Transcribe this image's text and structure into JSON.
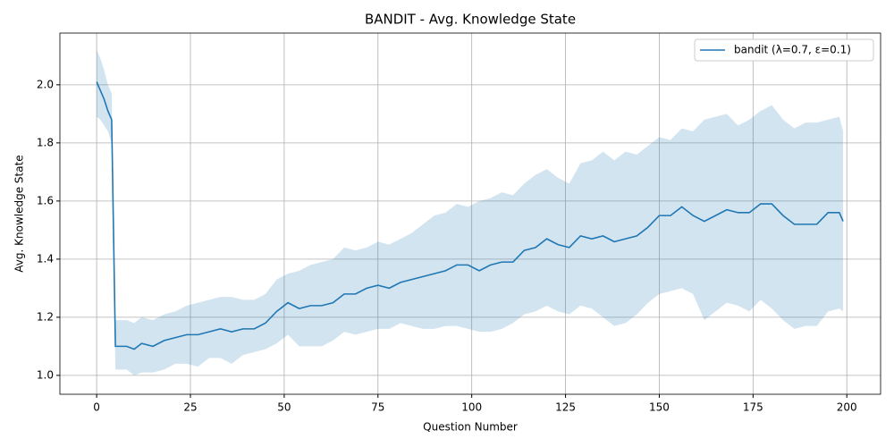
{
  "chart_data": {
    "type": "line",
    "title": "BANDIT - Avg. Knowledge State",
    "xlabel": "Question Number",
    "ylabel": "Avg. Knowledge State",
    "x": [
      0,
      1,
      2,
      3,
      4,
      5,
      8,
      10,
      12,
      15,
      18,
      21,
      24,
      27,
      30,
      33,
      36,
      39,
      42,
      45,
      48,
      51,
      54,
      57,
      60,
      63,
      66,
      69,
      72,
      75,
      78,
      81,
      84,
      87,
      90,
      93,
      96,
      99,
      102,
      105,
      108,
      111,
      114,
      117,
      120,
      123,
      126,
      129,
      132,
      135,
      138,
      141,
      144,
      147,
      150,
      153,
      156,
      159,
      162,
      165,
      168,
      171,
      174,
      177,
      180,
      183,
      186,
      189,
      192,
      195,
      198,
      199
    ],
    "series": [
      {
        "name": "bandit (λ=0.7, ε=0.1)",
        "color": "#1f77b4",
        "band_color": "#1f77b4",
        "values": [
          2.01,
          1.98,
          1.95,
          1.91,
          1.88,
          1.1,
          1.1,
          1.09,
          1.11,
          1.1,
          1.12,
          1.13,
          1.14,
          1.14,
          1.15,
          1.16,
          1.15,
          1.16,
          1.16,
          1.18,
          1.22,
          1.25,
          1.23,
          1.24,
          1.24,
          1.25,
          1.28,
          1.28,
          1.3,
          1.31,
          1.3,
          1.32,
          1.33,
          1.34,
          1.35,
          1.36,
          1.38,
          1.38,
          1.36,
          1.38,
          1.39,
          1.39,
          1.43,
          1.44,
          1.47,
          1.45,
          1.44,
          1.48,
          1.47,
          1.48,
          1.46,
          1.47,
          1.48,
          1.51,
          1.55,
          1.55,
          1.58,
          1.55,
          1.53,
          1.55,
          1.57,
          1.56,
          1.56,
          1.59,
          1.59,
          1.55,
          1.52,
          1.52,
          1.52,
          1.56,
          1.56,
          1.53
        ],
        "lower": [
          1.89,
          1.88,
          1.86,
          1.84,
          1.8,
          1.02,
          1.02,
          1.0,
          1.01,
          1.01,
          1.02,
          1.04,
          1.04,
          1.03,
          1.06,
          1.06,
          1.04,
          1.07,
          1.08,
          1.09,
          1.11,
          1.14,
          1.1,
          1.1,
          1.1,
          1.12,
          1.15,
          1.14,
          1.15,
          1.16,
          1.16,
          1.18,
          1.17,
          1.16,
          1.16,
          1.17,
          1.17,
          1.16,
          1.15,
          1.15,
          1.16,
          1.18,
          1.21,
          1.22,
          1.24,
          1.22,
          1.21,
          1.24,
          1.23,
          1.2,
          1.17,
          1.18,
          1.21,
          1.25,
          1.28,
          1.29,
          1.3,
          1.28,
          1.19,
          1.22,
          1.25,
          1.24,
          1.22,
          1.26,
          1.23,
          1.19,
          1.16,
          1.17,
          1.17,
          1.22,
          1.23,
          1.22
        ],
        "upper": [
          2.12,
          2.09,
          2.05,
          2.0,
          1.97,
          1.19,
          1.19,
          1.18,
          1.2,
          1.19,
          1.21,
          1.22,
          1.24,
          1.25,
          1.26,
          1.27,
          1.27,
          1.26,
          1.26,
          1.28,
          1.33,
          1.35,
          1.36,
          1.38,
          1.39,
          1.4,
          1.44,
          1.43,
          1.44,
          1.46,
          1.45,
          1.47,
          1.49,
          1.52,
          1.55,
          1.56,
          1.59,
          1.58,
          1.6,
          1.61,
          1.63,
          1.62,
          1.66,
          1.69,
          1.71,
          1.68,
          1.66,
          1.73,
          1.74,
          1.77,
          1.74,
          1.77,
          1.76,
          1.79,
          1.82,
          1.81,
          1.85,
          1.84,
          1.88,
          1.89,
          1.9,
          1.86,
          1.88,
          1.91,
          1.93,
          1.88,
          1.85,
          1.87,
          1.87,
          1.88,
          1.89,
          1.84
        ]
      }
    ],
    "xlim": [
      -9.8,
      209
    ],
    "ylim": [
      0.935,
      2.178
    ],
    "xticks": [
      0,
      25,
      50,
      75,
      100,
      125,
      150,
      175,
      200
    ],
    "yticks": [
      {
        "value": 1,
        "label": "1.0"
      },
      {
        "value": 1.2,
        "label": "1.2"
      },
      {
        "value": 1.4,
        "label": "1.4"
      },
      {
        "value": 1.6,
        "label": "1.6"
      },
      {
        "value": 1.8,
        "label": "1.8"
      },
      {
        "value": 2,
        "label": "2.0"
      }
    ],
    "grid": true,
    "legend": "upper right"
  }
}
